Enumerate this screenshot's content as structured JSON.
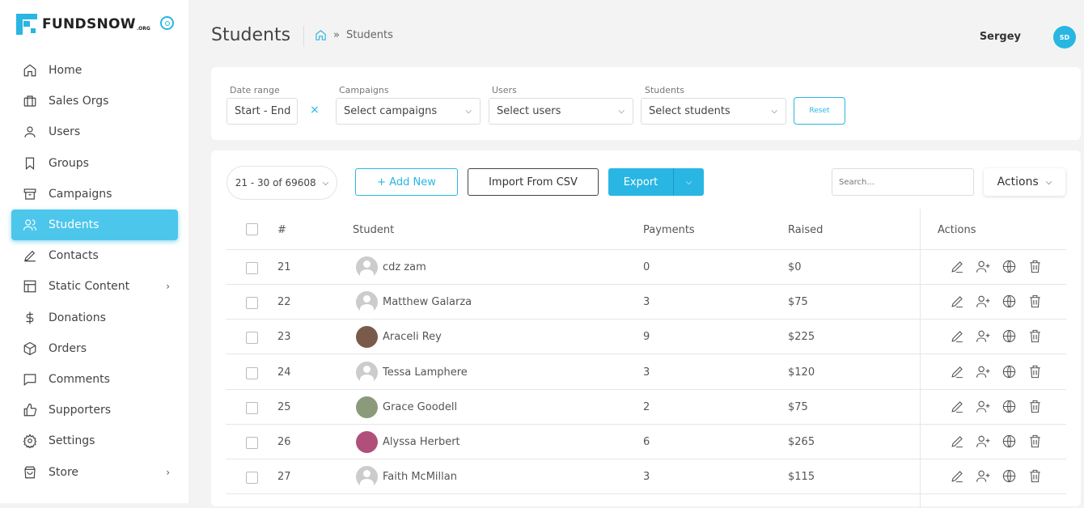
{
  "brand": {
    "name": "FUNDSNOW",
    "suffix": ".ORG",
    "accent": "#29b6e3"
  },
  "sidebar": {
    "items": [
      {
        "label": "Home",
        "icon": "home-icon"
      },
      {
        "label": "Sales Orgs",
        "icon": "briefcase-icon"
      },
      {
        "label": "Users",
        "icon": "user-icon"
      },
      {
        "label": "Groups",
        "icon": "bookmark-icon"
      },
      {
        "label": "Campaigns",
        "icon": "archive-icon"
      },
      {
        "label": "Students",
        "icon": "users-icon",
        "active": true
      },
      {
        "label": "Contacts",
        "icon": "pen-icon"
      },
      {
        "label": "Static Content",
        "icon": "layout-icon",
        "submenu": true
      },
      {
        "label": "Donations",
        "icon": "dollar-icon"
      },
      {
        "label": "Orders",
        "icon": "box-icon"
      },
      {
        "label": "Comments",
        "icon": "comment-icon"
      },
      {
        "label": "Supporters",
        "icon": "thumbs-up-icon"
      },
      {
        "label": "Settings",
        "icon": "gear-icon"
      },
      {
        "label": "Store",
        "icon": "shopping-bag-icon",
        "submenu": true
      }
    ]
  },
  "header": {
    "title": "Students",
    "breadcrumb": "Students",
    "breadcrumb_sep": "»",
    "user_name": "Sergey",
    "user_initials": "SD"
  },
  "filters": {
    "date_label": "Date range",
    "date_value": "Start - End",
    "clear": "×",
    "campaigns_label": "Campaigns",
    "campaigns_value": "Select campaigns",
    "users_label": "Users",
    "users_value": "Select users",
    "students_label": "Students",
    "students_value": "Select students",
    "reset": "Reset"
  },
  "toolbar": {
    "pager": "21 - 30 of 69608",
    "add_new": "+ Add New",
    "import": "Import From CSV",
    "export": "Export",
    "search_placeholder": "Search...",
    "actions": "Actions"
  },
  "table": {
    "columns": [
      "#",
      "Student",
      "Payments",
      "Raised",
      "Actions"
    ],
    "rows": [
      {
        "num": "21",
        "name": "cdz zam",
        "payments": "0",
        "raised": "$0",
        "photo": false
      },
      {
        "num": "22",
        "name": "Matthew Galarza",
        "payments": "3",
        "raised": "$75",
        "photo": false
      },
      {
        "num": "23",
        "name": "Araceli Rey",
        "payments": "9",
        "raised": "$225",
        "photo": true
      },
      {
        "num": "24",
        "name": "Tessa Lamphere",
        "payments": "3",
        "raised": "$120",
        "photo": false
      },
      {
        "num": "25",
        "name": "Grace Goodell",
        "payments": "2",
        "raised": "$75",
        "photo": true
      },
      {
        "num": "26",
        "name": "Alyssa Herbert",
        "payments": "6",
        "raised": "$265",
        "photo": true
      },
      {
        "num": "27",
        "name": "Faith McMillan",
        "payments": "3",
        "raised": "$115",
        "photo": false
      }
    ]
  }
}
